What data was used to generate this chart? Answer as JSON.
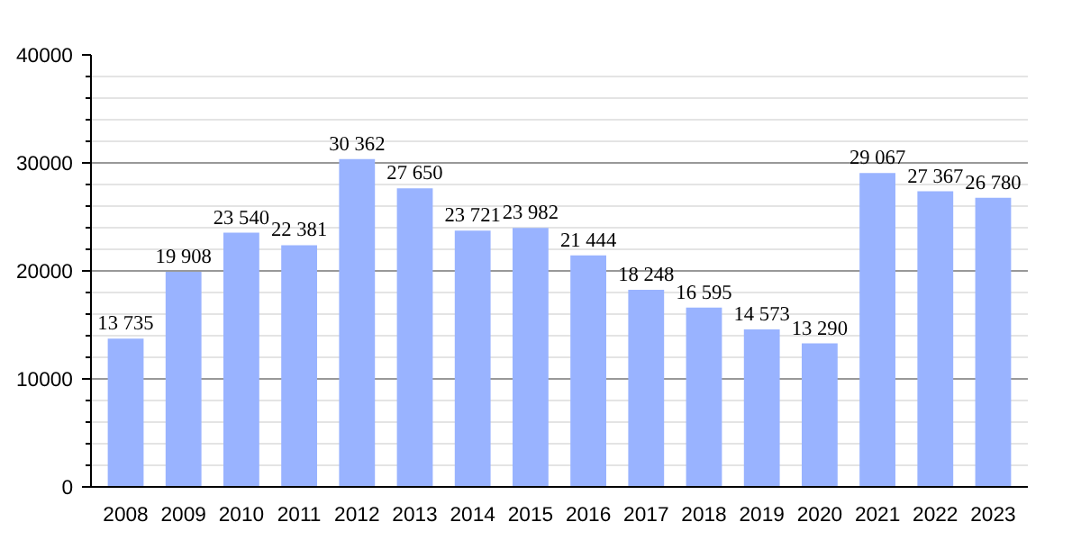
{
  "chart_data": {
    "type": "bar",
    "categories": [
      "2008",
      "2009",
      "2010",
      "2011",
      "2012",
      "2013",
      "2014",
      "2015",
      "2016",
      "2017",
      "2018",
      "2019",
      "2020",
      "2021",
      "2022",
      "2023"
    ],
    "values": [
      13735,
      19908,
      23540,
      22381,
      30362,
      27650,
      23721,
      23982,
      21444,
      18248,
      16595,
      14573,
      13290,
      29067,
      27367,
      26780
    ],
    "value_labels": [
      "13 735",
      "19 908",
      "23 540",
      "22 381",
      "30 362",
      "27 650",
      "23 721",
      "23 982",
      "21 444",
      "18 248",
      "16 595",
      "14 573",
      "13 290",
      "29 067",
      "27 367",
      "26 780"
    ],
    "color": "#99b3ff",
    "ylim": [
      0,
      40000
    ],
    "yticks": [
      0,
      10000,
      20000,
      30000,
      40000
    ],
    "grid": "y"
  }
}
